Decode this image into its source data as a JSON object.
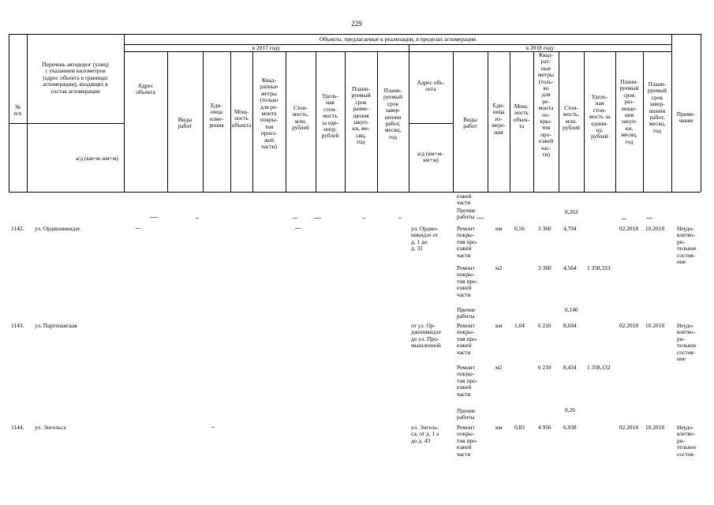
{
  "page_number": "229",
  "header": {
    "num": "№\nп/п",
    "road_list": "Перечень автодорог (улиц)\nс указанием километров\n(адрес объекта в границах\nагломерации), входящих в\nсостав агломерации",
    "road_sub": "а/д (км+м–км+м)",
    "objects_title": "Объекты, предлагаемые к реализации, в пределах агломерации",
    "year_2017": "в 2017 году",
    "year_2018": "в 2018 году",
    "note": "Приме-\nчание",
    "cols_2017": {
      "address": "Адрес\nобъекта",
      "work": "Виды\nработ",
      "unit": "Еди-\nница\nизме-\nрения",
      "capacity": "Мощ-\nность\nобъекта",
      "area": "Квад-\nратные\nметры\n(только\nдля ре-\nмонта\nпокры-\nтия\nпроез-\nжей\nчасти)",
      "cost": "Стои-\nмость,\nмлн.\nрублей",
      "unit_cost": "Удель-\nная\nстои-\nмость\nза еди-\nницу,\nрублей",
      "plan_tender": "Плани-\nруемый\nсрок\nразме-\nщения\nзакуп-\nки, ме-\nсяц,\nгод",
      "plan_finish": "Плани-\nруемый\nсрок\nзавер-\nшения\nработ,\nмесяц,\nгод"
    },
    "cols_2018": {
      "address": "Адрес объ-\nекта",
      "address_sub": "а/д (км+м–\nкм+м)",
      "work": "Виды\nработ",
      "unit": "Еди-\nница\nиз-\nмере-\nния",
      "capacity": "Мощ-\nность\nобъек-\nта",
      "area": "Квад-\nрат-\nные\nметры\n(толь-\nко\nдля\nре-\nмонта\nпо-\nкры-\nтия\nпро-\nезжей\nчас-\nти)",
      "cost": "Стои-\nмость,\nмлн.\nрублей",
      "unit_cost": "Удель-\nная\nстои-\nмость за\nедини-\nцу,\nрублей",
      "plan_tender": "Плани-\nруемый\nсрок\nраз-\nмеще-\nния\nзакуп-\nки,\nмесяц,\nгод",
      "plan_finish": "Плани-\nруемый\nсрок\nзавер-\nшения\nработ,\nмесяц,\nгод"
    }
  },
  "carry_over": "езжей\nчасти",
  "rows": [
    {
      "num": "1142.",
      "road": "ул. Орджоникидзе",
      "address": "ул. Орджо-\nникидзе от\nд. 1 до\nд. 31",
      "other_work": "Прочие\nработы",
      "other_cost": "0,263",
      "w1": "Ремонт\nпокры-\nтия про-\nезжей\nчасти",
      "u1": "км",
      "cap1": "0,56",
      "area1": "3 360",
      "cost1": "4,704",
      "tender": "02.2018",
      "finish": "10.2018",
      "note": "Неудо-\nвлетво-\nри-\nтельное\nсостоя-\nние",
      "w2": "Ремонт\nпокры-\nтия про-\nезжей\nчасти",
      "u2": "м2",
      "area2": "3 360",
      "cost2": "4,564",
      "ucost2": "1 358,333"
    },
    {
      "num": "1143.",
      "road": "ул. Партизанская",
      "address": "от ул. Ор-\nджоникидзе\nдо ул. Про-\nмышленной",
      "other_work": "Прочие\nработы",
      "other_cost": "0,140",
      "w1": "Ремонт\nпокры-\nтия про-\nезжей\nчасти",
      "u1": "км",
      "cap1": "1,04",
      "area1": "6 210",
      "cost1": "8,694",
      "tender": "02.2018",
      "finish": "10.2018",
      "note": "Неудо-\nвлетво-\nри-\nтельное\nсостоя-\nние",
      "w2": "Ремонт\nпокры-\nтия про-\nезжей\nчасти",
      "u2": "м2",
      "area2": "6 210",
      "cost2": "8,434",
      "ucost2": "1 358,132"
    },
    {
      "num": "1144.",
      "road": "ул. Энгельса",
      "address": "ул. Энгель-\nса, от д. 1 а\nдо д. 43",
      "other_work": "Прочие\nработы",
      "other_cost": "0,26",
      "w1": "Ремонт\nпокры-\nтия про-\nезжей\nчасти",
      "u1": "км",
      "cap1": "0,83",
      "area1": "4 956",
      "cost1": "6,938",
      "tender": "02.2018",
      "finish": "10.2018",
      "note": "Неудо-\nвлетво-\nри-\nтельное\nсостоя-"
    }
  ]
}
